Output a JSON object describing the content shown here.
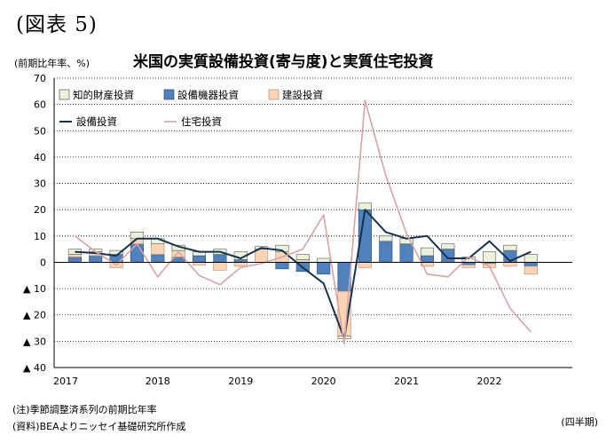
{
  "header": {
    "figure_label": "(図表 5)",
    "unit_label": "(前期比年率、%)",
    "title": "米国の実質設備投資(寄与度)と実質住宅投資"
  },
  "notes": {
    "note": "(注)季節調整済系列の前期比年率",
    "source": "(資料)BEAよりニッセイ基礎研究所作成",
    "period_label": "(四半期)"
  },
  "colors": {
    "ip": "#eaf3d9",
    "equip": "#4f81bd",
    "struct": "#fbd4b4",
    "line_total": "#17324f",
    "line_housing": "#d9a2a6",
    "grid": "#000000"
  },
  "chart_data": {
    "type": "bar",
    "stacked": true,
    "title": "米国の実質設備投資(寄与度)と実質住宅投資",
    "ylabel": "(前期比年率、%)",
    "xlabel": "(四半期)",
    "ylim": [
      -40,
      70
    ],
    "yticks": [
      70,
      60,
      50,
      40,
      30,
      20,
      10,
      0,
      -10,
      -20,
      -30,
      -40
    ],
    "ytick_labels": [
      "70",
      "60",
      "50",
      "40",
      "30",
      "20",
      "10",
      "0",
      "▲ 10",
      "▲ 20",
      "▲ 30",
      "▲ 40"
    ],
    "year_labels": [
      "2017",
      "2018",
      "2019",
      "2020",
      "2021",
      "2022"
    ],
    "quarters": [
      "2017Q1",
      "2017Q2",
      "2017Q3",
      "2017Q4",
      "2018Q1",
      "2018Q2",
      "2018Q3",
      "2018Q4",
      "2019Q1",
      "2019Q2",
      "2019Q3",
      "2019Q4",
      "2020Q1",
      "2020Q2",
      "2020Q3",
      "2020Q4",
      "2021Q1",
      "2021Q2",
      "2021Q3",
      "2021Q4",
      "2022Q1",
      "2022Q2",
      "2022Q3"
    ],
    "grid": true,
    "legend_position": "top-left",
    "series": [
      {
        "name": "知的財産投資",
        "kind": "bar",
        "values": [
          2.0,
          1.0,
          1.5,
          2.5,
          2.0,
          2.0,
          1.5,
          2.0,
          3.0,
          1.0,
          2.5,
          2.0,
          1.5,
          -1.0,
          2.5,
          2.0,
          2.0,
          3.0,
          2.0,
          2.0,
          4.0,
          2.0,
          3.0
        ]
      },
      {
        "name": "設備機器投資",
        "kind": "bar",
        "values": [
          2.0,
          2.5,
          3.0,
          7.0,
          3.0,
          2.0,
          2.5,
          3.0,
          1.0,
          0.0,
          -2.5,
          -3.5,
          -4.5,
          -11.0,
          20.0,
          8.0,
          7.0,
          2.5,
          5.0,
          -1.0,
          -0.5,
          4.5,
          -1.5
        ]
      },
      {
        "name": "建設投資",
        "kind": "bar",
        "values": [
          1.0,
          1.5,
          -2.0,
          2.0,
          4.0,
          2.5,
          -1.0,
          -3.0,
          -1.5,
          5.0,
          4.0,
          1.0,
          0.0,
          -17.0,
          -2.0,
          0.0,
          0.0,
          -1.5,
          0.0,
          -1.0,
          -1.5,
          -1.5,
          -3.0
        ]
      },
      {
        "name": "設備投資",
        "kind": "line",
        "values": [
          4.0,
          3.5,
          2.5,
          9.0,
          9.0,
          6.0,
          4.0,
          4.0,
          1.5,
          5.5,
          4.5,
          -2.0,
          -8.0,
          -29.0,
          20.0,
          11.5,
          9.0,
          10.0,
          1.5,
          1.5,
          8.0,
          0.5,
          4.0
        ]
      },
      {
        "name": "住宅投資",
        "kind": "line",
        "values": [
          10.0,
          4.0,
          -1.0,
          7.0,
          -5.5,
          4.0,
          -5.0,
          -8.5,
          -2.0,
          -0.5,
          2.0,
          5.0,
          18.0,
          -31.0,
          61.5,
          33.0,
          11.0,
          -4.5,
          -5.5,
          2.0,
          -1.5,
          -17.5,
          -26.5
        ]
      }
    ]
  }
}
